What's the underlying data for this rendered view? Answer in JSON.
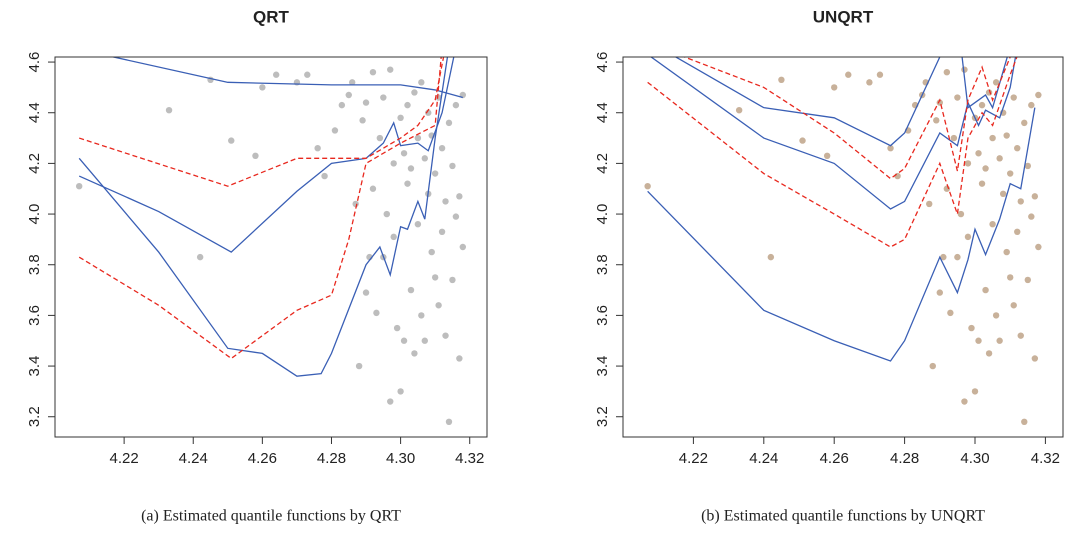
{
  "chart_data": [
    {
      "type": "scatter",
      "title": "QRT",
      "caption": "(a) Estimated quantile functions by QRT",
      "xlim": [
        4.2,
        4.325
      ],
      "ylim": [
        3.12,
        4.62
      ],
      "xticks": [
        4.22,
        4.24,
        4.26,
        4.28,
        {
          "value": 4.3,
          "label": "4.30"
        },
        4.32
      ],
      "yticks": [
        3.2,
        3.4,
        3.6,
        3.8,
        {
          "value": 4,
          "label": "4.0"
        },
        4.2,
        4.4,
        4.6
      ],
      "points": {
        "color": "#bdbdbd",
        "x": [
          4.207,
          4.233,
          4.242,
          4.245,
          4.251,
          4.258,
          4.26,
          4.264,
          4.27,
          4.273,
          4.276,
          4.278,
          4.281,
          4.283,
          4.285,
          4.286,
          4.287,
          4.288,
          4.289,
          4.29,
          4.29,
          4.291,
          4.292,
          4.292,
          4.293,
          4.294,
          4.295,
          4.295,
          4.296,
          4.297,
          4.297,
          4.298,
          4.298,
          4.299,
          4.3,
          4.3,
          4.301,
          4.301,
          4.302,
          4.302,
          4.303,
          4.303,
          4.304,
          4.304,
          4.305,
          4.305,
          4.306,
          4.306,
          4.307,
          4.307,
          4.308,
          4.308,
          4.309,
          4.309,
          4.31,
          4.31,
          4.311,
          4.311,
          4.312,
          4.312,
          4.313,
          4.313,
          4.314,
          4.314,
          4.315,
          4.315,
          4.316,
          4.316,
          4.317,
          4.317,
          4.318,
          4.318
        ],
        "y": [
          4.11,
          4.41,
          3.83,
          4.53,
          4.29,
          4.23,
          4.5,
          4.55,
          4.52,
          4.55,
          4.26,
          4.15,
          4.33,
          4.43,
          4.47,
          4.52,
          4.04,
          3.4,
          4.37,
          3.69,
          4.44,
          3.83,
          4.56,
          4.1,
          3.61,
          4.3,
          3.83,
          4.46,
          4,
          3.26,
          4.57,
          3.91,
          4.2,
          3.55,
          3.3,
          4.38,
          4.24,
          3.5,
          4.12,
          4.43,
          3.7,
          4.18,
          4.48,
          3.45,
          3.96,
          4.3,
          4.52,
          3.6,
          4.22,
          3.5,
          4.08,
          4.4,
          3.85,
          4.31,
          4.16,
          3.75,
          4.46,
          3.64,
          4.26,
          3.93,
          4.05,
          3.52,
          4.36,
          3.18,
          4.19,
          3.74,
          3.99,
          4.43,
          3.43,
          4.07,
          3.87,
          4.47
        ]
      },
      "lines": [
        {
          "color": "#3a5fb5",
          "dash": false,
          "x": [
            4.207,
            4.25,
            4.28,
            4.3,
            4.31,
            4.318
          ],
          "y": [
            4.65,
            4.52,
            4.51,
            4.51,
            4.49,
            4.46
          ]
        },
        {
          "color": "#3a5fb5",
          "dash": false,
          "x": [
            4.207,
            4.23,
            4.251,
            4.27,
            4.28,
            4.29,
            4.295,
            4.298,
            4.3,
            4.305,
            4.308,
            4.312,
            4.316
          ],
          "y": [
            4.15,
            4.01,
            3.85,
            4.09,
            4.2,
            4.22,
            4.28,
            4.36,
            4.27,
            4.28,
            4.25,
            4.4,
            4.66
          ]
        },
        {
          "color": "#3a5fb5",
          "dash": false,
          "x": [
            4.207,
            4.23,
            4.25,
            4.26,
            4.27,
            4.277,
            4.28,
            4.29,
            4.294,
            4.297,
            4.3,
            4.302,
            4.305,
            4.307,
            4.31,
            4.314
          ],
          "y": [
            4.22,
            3.85,
            3.47,
            3.45,
            3.36,
            3.37,
            3.45,
            3.8,
            3.87,
            3.76,
            3.95,
            3.94,
            4.05,
            3.98,
            4.3,
            4.66
          ]
        },
        {
          "color": "#e8281e",
          "dash": true,
          "x": [
            4.207,
            4.25,
            4.27,
            4.29,
            4.3,
            4.305,
            4.31,
            4.313
          ],
          "y": [
            4.3,
            4.11,
            4.22,
            4.22,
            4.3,
            4.35,
            4.45,
            4.66
          ]
        },
        {
          "color": "#e8281e",
          "dash": true,
          "x": [
            4.207,
            4.23,
            4.251,
            4.27,
            4.28,
            4.285,
            4.29,
            4.3,
            4.31,
            4.312
          ],
          "y": [
            3.83,
            3.64,
            3.43,
            3.62,
            3.68,
            3.9,
            4.2,
            4.28,
            4.35,
            4.66
          ]
        }
      ]
    },
    {
      "type": "scatter",
      "title": "UNQRT",
      "caption": "(b) Estimated quantile functions by UNQRT",
      "xlim": [
        4.2,
        4.325
      ],
      "ylim": [
        3.12,
        4.62
      ],
      "xticks": [
        4.22,
        4.24,
        4.26,
        4.28,
        {
          "value": 4.3,
          "label": "4.30"
        },
        4.32
      ],
      "yticks": [
        3.2,
        3.4,
        3.6,
        3.8,
        {
          "value": 4,
          "label": "4.0"
        },
        4.2,
        4.4,
        4.6
      ],
      "points": {
        "color": "#c8b19a",
        "x": [
          4.207,
          4.233,
          4.242,
          4.245,
          4.251,
          4.258,
          4.26,
          4.264,
          4.27,
          4.273,
          4.276,
          4.278,
          4.281,
          4.283,
          4.285,
          4.286,
          4.287,
          4.288,
          4.289,
          4.29,
          4.29,
          4.291,
          4.292,
          4.292,
          4.293,
          4.294,
          4.295,
          4.295,
          4.296,
          4.297,
          4.297,
          4.298,
          4.298,
          4.299,
          4.3,
          4.3,
          4.301,
          4.301,
          4.302,
          4.302,
          4.303,
          4.303,
          4.304,
          4.304,
          4.305,
          4.305,
          4.306,
          4.306,
          4.307,
          4.307,
          4.308,
          4.308,
          4.309,
          4.309,
          4.31,
          4.31,
          4.311,
          4.311,
          4.312,
          4.312,
          4.313,
          4.313,
          4.314,
          4.314,
          4.315,
          4.315,
          4.316,
          4.316,
          4.317,
          4.317,
          4.318,
          4.318
        ],
        "y": [
          4.11,
          4.41,
          3.83,
          4.53,
          4.29,
          4.23,
          4.5,
          4.55,
          4.52,
          4.55,
          4.26,
          4.15,
          4.33,
          4.43,
          4.47,
          4.52,
          4.04,
          3.4,
          4.37,
          3.69,
          4.44,
          3.83,
          4.56,
          4.1,
          3.61,
          4.3,
          3.83,
          4.46,
          4,
          3.26,
          4.57,
          3.91,
          4.2,
          3.55,
          3.3,
          4.38,
          4.24,
          3.5,
          4.12,
          4.43,
          3.7,
          4.18,
          4.48,
          3.45,
          3.96,
          4.3,
          4.52,
          3.6,
          4.22,
          3.5,
          4.08,
          4.4,
          3.85,
          4.31,
          4.16,
          3.75,
          4.46,
          3.64,
          4.26,
          3.93,
          4.05,
          3.52,
          4.36,
          3.18,
          4.19,
          3.74,
          3.99,
          4.43,
          3.43,
          4.07,
          3.87,
          4.47
        ]
      },
      "lines": [
        {
          "color": "#3a5fb5",
          "dash": false,
          "x": [
            4.21,
            4.24,
            4.26,
            4.276,
            4.28,
            4.29,
            4.293,
            4.296,
            4.298,
            4.301,
            4.303,
            4.305,
            4.31
          ],
          "y": [
            4.66,
            4.42,
            4.38,
            4.27,
            4.32,
            4.62,
            4.66,
            4.66,
            4.42,
            4.45,
            4.47,
            4.42,
            4.66
          ]
        },
        {
          "color": "#3a5fb5",
          "dash": false,
          "x": [
            4.207,
            4.24,
            4.26,
            4.276,
            4.28,
            4.29,
            4.295,
            4.298,
            4.301,
            4.303,
            4.307,
            4.31,
            4.312
          ],
          "y": [
            4.63,
            4.3,
            4.2,
            4.02,
            4.05,
            4.32,
            4.27,
            4.44,
            4.35,
            4.41,
            4.38,
            4.5,
            4.66
          ]
        },
        {
          "color": "#3a5fb5",
          "dash": false,
          "x": [
            4.207,
            4.24,
            4.26,
            4.276,
            4.28,
            4.29,
            4.295,
            4.298,
            4.3,
            4.303,
            4.307,
            4.31,
            4.313,
            4.317
          ],
          "y": [
            4.09,
            3.62,
            3.5,
            3.42,
            3.5,
            3.83,
            3.69,
            3.82,
            3.94,
            3.84,
            3.98,
            4.12,
            4.1,
            4.42
          ]
        },
        {
          "color": "#e8281e",
          "dash": true,
          "x": [
            4.21,
            4.24,
            4.26,
            4.276,
            4.28,
            4.29,
            4.295,
            4.298,
            4.302,
            4.305,
            4.31,
            4.312
          ],
          "y": [
            4.66,
            4.5,
            4.32,
            4.14,
            4.18,
            4.45,
            4.17,
            4.45,
            4.58,
            4.45,
            4.62,
            4.66
          ]
        },
        {
          "color": "#e8281e",
          "dash": true,
          "x": [
            4.207,
            4.24,
            4.26,
            4.276,
            4.28,
            4.29,
            4.295,
            4.298,
            4.302,
            4.305,
            4.31,
            4.313
          ],
          "y": [
            4.52,
            4.16,
            4,
            3.87,
            3.9,
            4.2,
            4,
            4.3,
            4.4,
            4.35,
            4.55,
            4.66
          ]
        }
      ]
    }
  ]
}
